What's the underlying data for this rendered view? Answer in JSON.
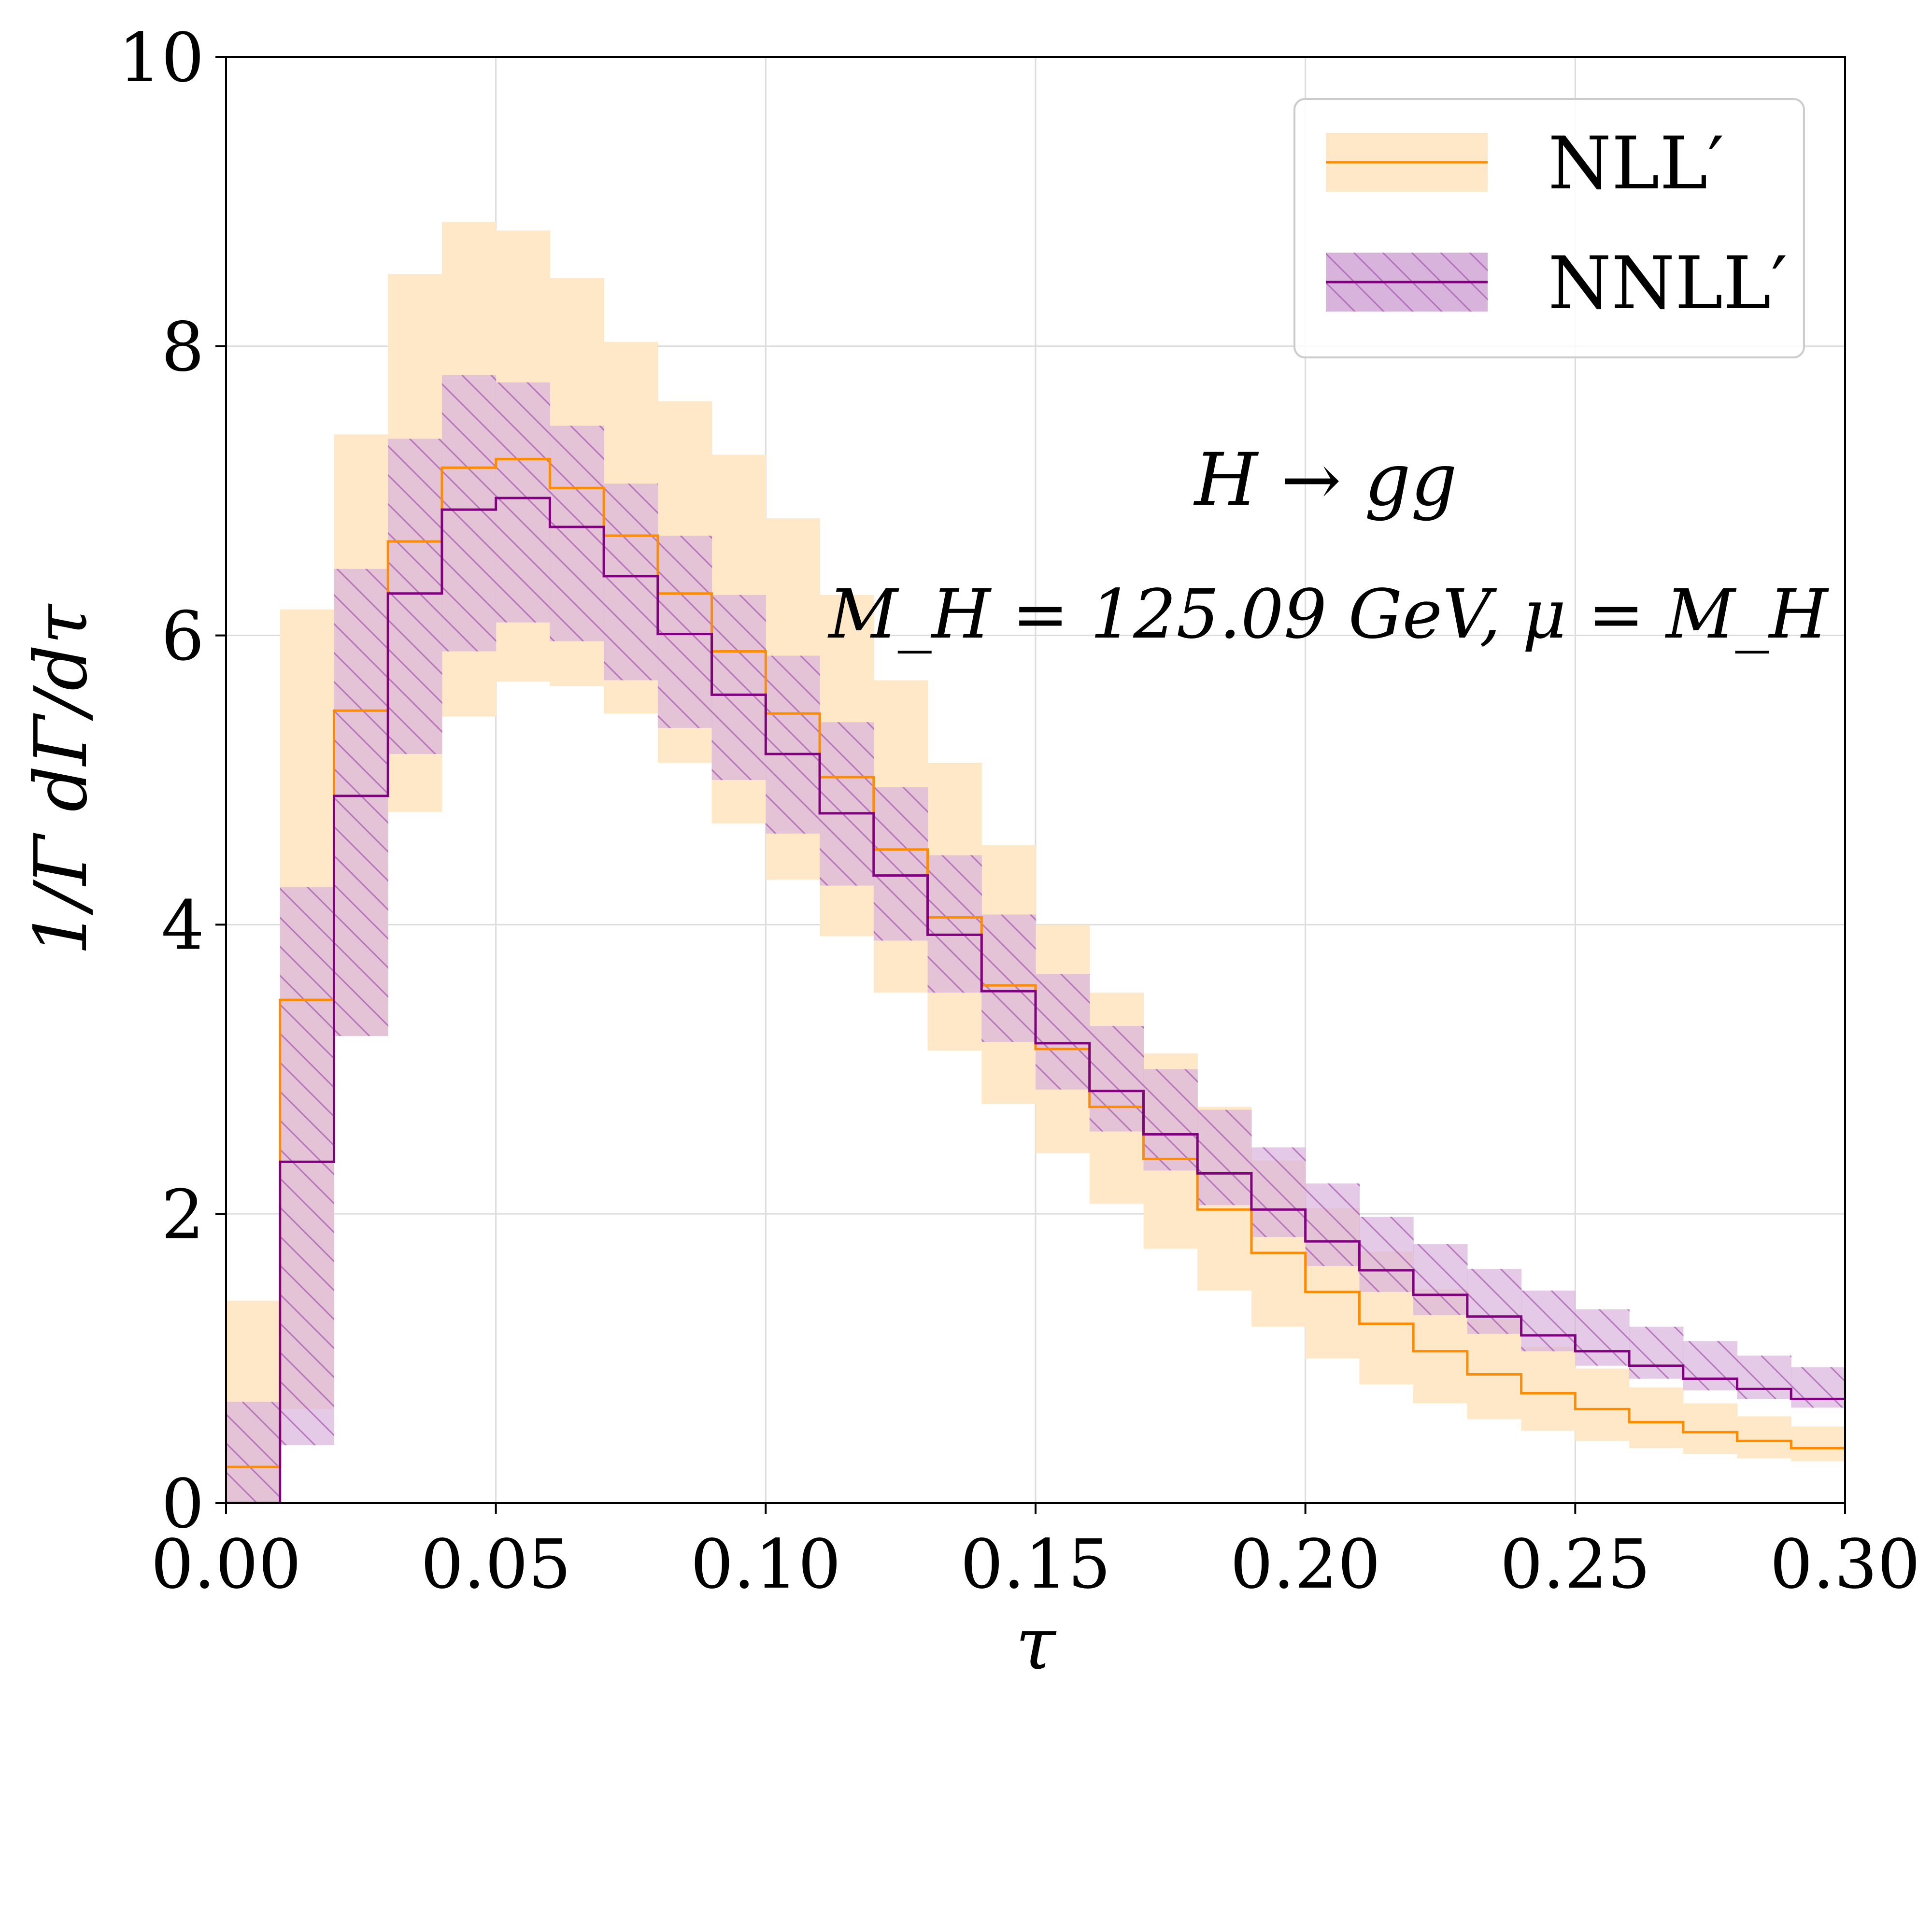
{
  "chart_data": {
    "type": "histogram_band",
    "xlabel": "τ",
    "ylabel": "1/Γ dΓ/dτ",
    "xlim": [
      0,
      0.3
    ],
    "ylim": [
      0,
      10
    ],
    "xticks": [
      0.0,
      0.05,
      0.1,
      0.15,
      0.2,
      0.25,
      0.3
    ],
    "xtick_labels": [
      "0.00",
      "0.05",
      "0.10",
      "0.15",
      "0.20",
      "0.25",
      "0.30"
    ],
    "yticks": [
      0,
      2,
      4,
      6,
      8,
      10
    ],
    "ytick_labels": [
      "0",
      "2",
      "4",
      "6",
      "8",
      "10"
    ],
    "grid": true,
    "legend_position": "top-right",
    "annotations": [
      "H → gg",
      "M_H = 125.09 GeV,  μ = M_H"
    ],
    "bin_edges": [
      0.0,
      0.01,
      0.02,
      0.03,
      0.04,
      0.05,
      0.06,
      0.07,
      0.08,
      0.09,
      0.1,
      0.11,
      0.12,
      0.13,
      0.14,
      0.15,
      0.16,
      0.17,
      0.18,
      0.19,
      0.2,
      0.21,
      0.22,
      0.23,
      0.24,
      0.25,
      0.26,
      0.27,
      0.28,
      0.29,
      0.3
    ],
    "series": [
      {
        "name": "NLL′",
        "line_color": "#ff8c00",
        "band_color": "#ffe8c8",
        "hatched": false,
        "central": [
          0.25,
          3.48,
          5.48,
          6.65,
          7.16,
          7.22,
          7.02,
          6.69,
          6.29,
          5.89,
          5.46,
          5.02,
          4.52,
          4.05,
          3.58,
          3.14,
          2.74,
          2.38,
          2.03,
          1.73,
          1.46,
          1.24,
          1.05,
          0.89,
          0.76,
          0.65,
          0.56,
          0.49,
          0.43,
          0.38
        ],
        "lower": [
          0.0,
          0.65,
          3.23,
          4.78,
          5.44,
          5.68,
          5.65,
          5.46,
          5.12,
          4.7,
          4.31,
          3.92,
          3.53,
          3.13,
          2.76,
          2.42,
          2.07,
          1.76,
          1.47,
          1.22,
          1.0,
          0.82,
          0.69,
          0.58,
          0.5,
          0.43,
          0.38,
          0.34,
          0.31,
          0.29
        ],
        "upper": [
          1.4,
          6.18,
          7.39,
          8.5,
          8.86,
          8.8,
          8.47,
          8.03,
          7.62,
          7.25,
          6.81,
          6.28,
          5.69,
          5.12,
          4.55,
          4.0,
          3.53,
          3.11,
          2.74,
          2.37,
          2.04,
          1.74,
          1.48,
          1.27,
          1.08,
          0.93,
          0.8,
          0.69,
          0.6,
          0.53
        ]
      },
      {
        "name": "NNLL′",
        "line_color": "#800080",
        "band_color": "#d8b4dc",
        "hatched": true,
        "central": [
          0.0,
          2.36,
          4.89,
          6.29,
          6.87,
          6.95,
          6.75,
          6.41,
          6.01,
          5.59,
          5.18,
          4.77,
          4.34,
          3.93,
          3.54,
          3.18,
          2.85,
          2.55,
          2.28,
          2.03,
          1.81,
          1.61,
          1.44,
          1.29,
          1.16,
          1.05,
          0.95,
          0.86,
          0.79,
          0.72
        ],
        "lower": [
          0.0,
          0.4,
          3.23,
          5.18,
          5.89,
          6.09,
          5.96,
          5.69,
          5.36,
          5.0,
          4.63,
          4.27,
          3.89,
          3.53,
          3.19,
          2.86,
          2.57,
          2.3,
          2.06,
          1.84,
          1.64,
          1.46,
          1.3,
          1.17,
          1.05,
          0.95,
          0.86,
          0.78,
          0.72,
          0.66
        ],
        "upper": [
          0.7,
          4.26,
          6.46,
          7.36,
          7.8,
          7.75,
          7.45,
          7.05,
          6.69,
          6.28,
          5.86,
          5.4,
          4.95,
          4.48,
          4.07,
          3.66,
          3.3,
          3.0,
          2.72,
          2.46,
          2.21,
          1.98,
          1.79,
          1.62,
          1.47,
          1.34,
          1.22,
          1.12,
          1.02,
          0.94
        ]
      }
    ]
  }
}
